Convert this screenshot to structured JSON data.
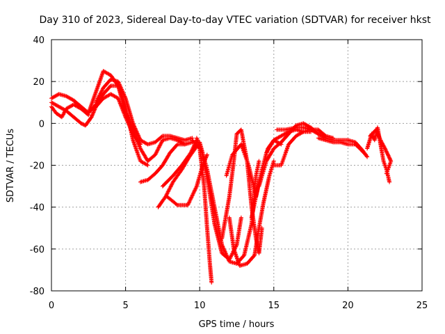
{
  "chart_data": {
    "type": "scatter",
    "title": "Day 310 of 2023, Sidereal Day-to-day VTEC variation (SDTVAR) for receiver hkst",
    "xlabel": "GPS time / hours",
    "ylabel": "SDTVAR / TECUs",
    "xlim": [
      0,
      25
    ],
    "ylim": [
      -80,
      40
    ],
    "xticks": [
      "0",
      "5",
      "10",
      "15",
      "20",
      "25"
    ],
    "yticks": [
      "40",
      "20",
      "0",
      "-20",
      "-40",
      "-60",
      "-80"
    ],
    "grid": true,
    "marker": "plus",
    "color": "#ff0000",
    "series": [
      {
        "name": "arc-1",
        "points": [
          [
            0,
            12
          ],
          [
            0.5,
            14
          ],
          [
            1,
            13
          ],
          [
            1.5,
            11
          ],
          [
            2,
            8
          ],
          [
            2.5,
            5
          ],
          [
            3,
            9
          ],
          [
            3.5,
            14
          ],
          [
            4,
            18
          ],
          [
            4.5,
            18
          ],
          [
            5,
            8
          ],
          [
            5.5,
            -8
          ],
          [
            6,
            -18
          ],
          [
            6.5,
            -20
          ]
        ]
      },
      {
        "name": "arc-2",
        "points": [
          [
            0,
            10
          ],
          [
            0.5,
            8
          ],
          [
            1,
            6
          ],
          [
            1.5,
            3
          ],
          [
            2,
            0
          ],
          [
            2.3,
            -1
          ],
          [
            2.7,
            3
          ],
          [
            3,
            8
          ],
          [
            3.5,
            12
          ],
          [
            4,
            14
          ],
          [
            4.5,
            12
          ],
          [
            5,
            3
          ],
          [
            5.5,
            -5
          ],
          [
            6,
            -10
          ]
        ]
      },
      {
        "name": "arc-3",
        "points": [
          [
            0,
            8
          ],
          [
            0.3,
            5
          ],
          [
            0.7,
            3
          ],
          [
            1,
            7
          ],
          [
            1.5,
            9
          ],
          [
            2,
            7
          ],
          [
            2.5,
            4
          ]
        ]
      },
      {
        "name": "arc-4",
        "points": [
          [
            2.5,
            5
          ],
          [
            3,
            15
          ],
          [
            3.5,
            25
          ],
          [
            4,
            23
          ],
          [
            4.5,
            18
          ],
          [
            5,
            5
          ],
          [
            5.5,
            -3
          ],
          [
            6,
            -12
          ],
          [
            6.5,
            -18
          ],
          [
            7,
            -15
          ],
          [
            7.5,
            -8
          ],
          [
            8,
            -7
          ],
          [
            8.5,
            -8
          ],
          [
            9,
            -10
          ],
          [
            9.5,
            -9
          ]
        ]
      },
      {
        "name": "arc-5",
        "points": [
          [
            3,
            10
          ],
          [
            3.5,
            17
          ],
          [
            4,
            21
          ],
          [
            4.5,
            20
          ],
          [
            5,
            12
          ],
          [
            5.5,
            0
          ],
          [
            6,
            -8
          ],
          [
            6.5,
            -10
          ],
          [
            7,
            -9
          ],
          [
            7.5,
            -6
          ],
          [
            8,
            -6
          ],
          [
            8.5,
            -7
          ],
          [
            9,
            -8
          ],
          [
            9.5,
            -7
          ]
        ]
      },
      {
        "name": "arc-6",
        "points": [
          [
            6,
            -28
          ],
          [
            6.5,
            -27
          ],
          [
            7,
            -24
          ],
          [
            7.5,
            -20
          ],
          [
            8,
            -14
          ],
          [
            8.5,
            -10
          ],
          [
            9,
            -10
          ]
        ]
      },
      {
        "name": "arc-7",
        "points": [
          [
            7.2,
            -40
          ],
          [
            7.7,
            -35
          ],
          [
            8.2,
            -28
          ],
          [
            8.8,
            -22
          ],
          [
            9.3,
            -16
          ],
          [
            9.8,
            -11
          ]
        ]
      },
      {
        "name": "arc-8",
        "points": [
          [
            7.8,
            -35
          ],
          [
            8.5,
            -39
          ],
          [
            9.2,
            -39
          ],
          [
            9.8,
            -30
          ],
          [
            10.2,
            -20
          ],
          [
            10.5,
            -15
          ]
        ]
      },
      {
        "name": "arc-9",
        "points": [
          [
            7.5,
            -30
          ],
          [
            8.2,
            -25
          ],
          [
            8.8,
            -20
          ],
          [
            9.4,
            -14
          ],
          [
            9.8,
            -8
          ]
        ]
      },
      {
        "name": "arc-10",
        "points": [
          [
            9.5,
            -8
          ],
          [
            10,
            -12
          ],
          [
            10.3,
            -30
          ],
          [
            10.5,
            -50
          ],
          [
            10.7,
            -68
          ],
          [
            10.8,
            -76
          ]
        ]
      },
      {
        "name": "arc-11",
        "points": [
          [
            9.8,
            -7
          ],
          [
            10.2,
            -15
          ],
          [
            10.6,
            -30
          ],
          [
            11,
            -48
          ],
          [
            11.5,
            -62
          ],
          [
            12,
            -65
          ],
          [
            12.5,
            -58
          ],
          [
            12.8,
            -45
          ]
        ]
      },
      {
        "name": "arc-12",
        "points": [
          [
            10,
            -9
          ],
          [
            10.5,
            -22
          ],
          [
            11,
            -40
          ],
          [
            11.5,
            -58
          ],
          [
            12,
            -66
          ],
          [
            12.5,
            -67
          ],
          [
            13,
            -63
          ],
          [
            13.5,
            -48
          ],
          [
            13.8,
            -25
          ],
          [
            14,
            -18
          ]
        ]
      },
      {
        "name": "arc-13",
        "points": [
          [
            11.5,
            -55
          ],
          [
            12,
            -35
          ],
          [
            12.3,
            -18
          ],
          [
            12.5,
            -5
          ],
          [
            12.8,
            -3
          ],
          [
            13.2,
            -18
          ],
          [
            13.5,
            -40
          ],
          [
            13.8,
            -55
          ],
          [
            14,
            -62
          ],
          [
            14.2,
            -50
          ]
        ]
      },
      {
        "name": "arc-14",
        "points": [
          [
            12,
            -45
          ],
          [
            12.3,
            -60
          ],
          [
            12.7,
            -68
          ],
          [
            13.2,
            -67
          ],
          [
            13.7,
            -63
          ],
          [
            14,
            -50
          ],
          [
            14.3,
            -38
          ],
          [
            14.7,
            -25
          ],
          [
            15,
            -18
          ]
        ]
      },
      {
        "name": "arc-15",
        "points": [
          [
            11.8,
            -25
          ],
          [
            12.2,
            -15
          ],
          [
            12.8,
            -10
          ],
          [
            13.3,
            -20
          ],
          [
            13.8,
            -35
          ],
          [
            14.2,
            -22
          ],
          [
            14.6,
            -12
          ],
          [
            15,
            -8
          ],
          [
            15.5,
            -10
          ]
        ]
      },
      {
        "name": "arc-16",
        "points": [
          [
            13.5,
            -45
          ],
          [
            14,
            -28
          ],
          [
            14.5,
            -14
          ],
          [
            15,
            -8
          ],
          [
            15.5,
            -6
          ],
          [
            16,
            -4
          ],
          [
            16.5,
            -3
          ],
          [
            17,
            -4
          ],
          [
            17.5,
            -4
          ]
        ]
      },
      {
        "name": "arc-17",
        "points": [
          [
            14,
            -30
          ],
          [
            14.5,
            -18
          ],
          [
            15,
            -12
          ],
          [
            15.5,
            -9
          ],
          [
            16,
            -5
          ],
          [
            16.5,
            -1
          ],
          [
            17,
            0
          ],
          [
            17.5,
            -2
          ],
          [
            18,
            -5
          ]
        ]
      },
      {
        "name": "arc-18",
        "points": [
          [
            15,
            -20
          ],
          [
            15.5,
            -20
          ],
          [
            16,
            -10
          ],
          [
            16.5,
            -6
          ],
          [
            17,
            -4
          ],
          [
            17.5,
            -3
          ],
          [
            18,
            -3
          ],
          [
            18.5,
            -6
          ],
          [
            19,
            -7
          ]
        ]
      },
      {
        "name": "arc-19",
        "points": [
          [
            15.2,
            -3
          ],
          [
            15.8,
            -3
          ],
          [
            16.5,
            -2
          ],
          [
            17,
            -2
          ],
          [
            17.5,
            -3
          ],
          [
            18,
            -5
          ],
          [
            18.5,
            -7
          ],
          [
            19,
            -8
          ],
          [
            19.5,
            -8
          ],
          [
            20,
            -8
          ],
          [
            20.5,
            -9
          ],
          [
            21,
            -13
          ],
          [
            21.3,
            -16
          ]
        ]
      },
      {
        "name": "arc-20",
        "points": [
          [
            18,
            -7
          ],
          [
            18.5,
            -8
          ],
          [
            19,
            -9
          ],
          [
            19.5,
            -9
          ],
          [
            20,
            -10
          ],
          [
            20.5,
            -10
          ],
          [
            20.8,
            -12
          ],
          [
            21.2,
            -15
          ]
        ]
      },
      {
        "name": "arc-21",
        "points": [
          [
            21.3,
            -12
          ],
          [
            21.6,
            -5
          ],
          [
            21.8,
            -8
          ],
          [
            22,
            -2
          ],
          [
            22.2,
            -10
          ],
          [
            22.4,
            -18
          ],
          [
            22.6,
            -22
          ],
          [
            22.8,
            -28
          ]
        ]
      },
      {
        "name": "arc-22",
        "points": [
          [
            21.5,
            -6
          ],
          [
            21.9,
            -3
          ],
          [
            22.2,
            -8
          ],
          [
            22.5,
            -12
          ],
          [
            22.7,
            -15
          ],
          [
            22.9,
            -18
          ],
          [
            22.6,
            -24
          ]
        ]
      }
    ]
  }
}
